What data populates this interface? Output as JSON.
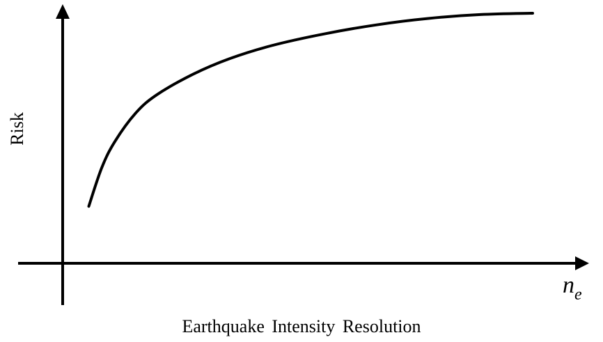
{
  "chart_data": {
    "type": "line",
    "title": "",
    "xlabel": "Earthquake Intensity Resolution",
    "xvar_symbol": "n",
    "xvar_subscript": "e",
    "ylabel": "Risk",
    "grid": false,
    "ticks": false,
    "xlim": [
      0,
      1
    ],
    "ylim": [
      0,
      1
    ],
    "series": [
      {
        "style": "solid",
        "color": "#000000",
        "x": [
          0.05,
          0.075,
          0.1,
          0.14,
          0.18,
          0.25,
          0.32,
          0.4,
          0.5,
          0.6,
          0.7,
          0.8,
          0.9
        ],
        "y": [
          0.22,
          0.37,
          0.47,
          0.58,
          0.65,
          0.73,
          0.79,
          0.84,
          0.885,
          0.92,
          0.945,
          0.96,
          0.965
        ]
      }
    ]
  }
}
